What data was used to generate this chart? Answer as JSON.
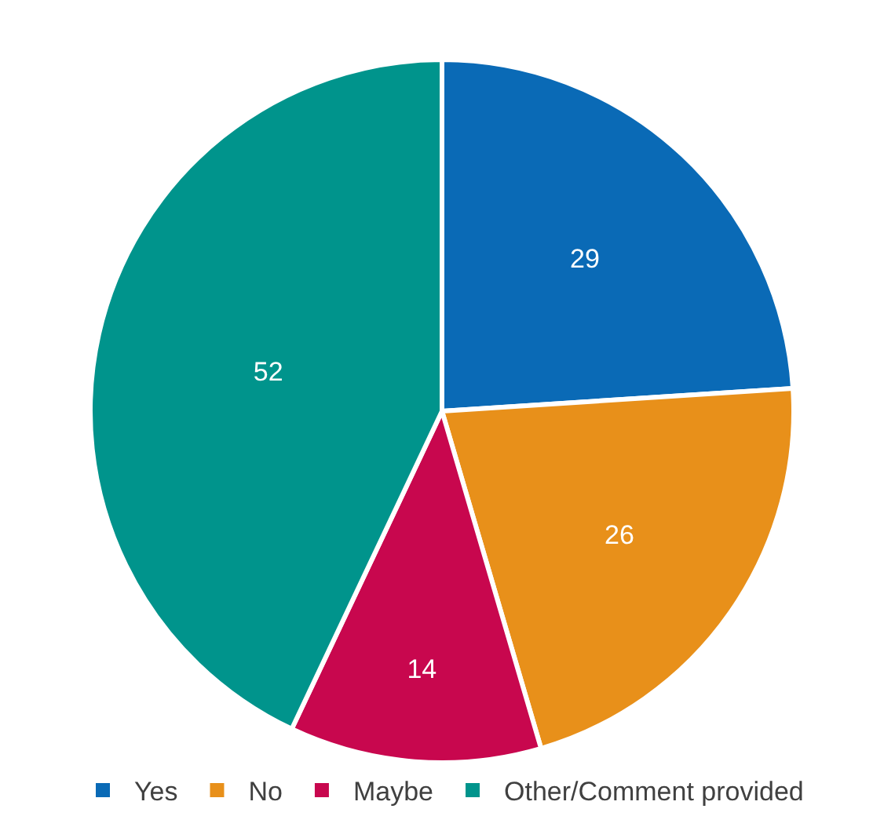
{
  "chart_data": {
    "type": "pie",
    "categories": [
      "Yes",
      "No",
      "Maybe",
      "Other/Comment provided"
    ],
    "values": [
      29,
      26,
      14,
      52
    ],
    "colors": [
      "#0a6ab6",
      "#e8901a",
      "#c8074e",
      "#00948c"
    ],
    "data_labels": true,
    "legend": "bottom"
  }
}
